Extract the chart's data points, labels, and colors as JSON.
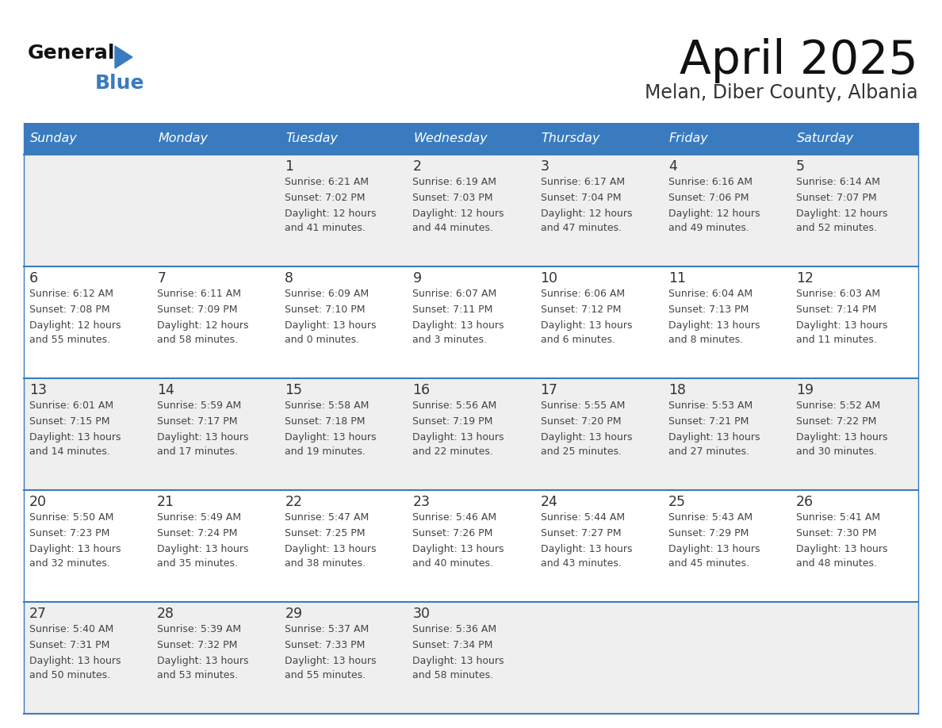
{
  "title": "April 2025",
  "subtitle": "Melan, Diber County, Albania",
  "days_of_week": [
    "Sunday",
    "Monday",
    "Tuesday",
    "Wednesday",
    "Thursday",
    "Friday",
    "Saturday"
  ],
  "header_bg": "#3a7bbf",
  "header_text": "#ffffff",
  "row_bg_odd": "#efefef",
  "row_bg_even": "#ffffff",
  "cell_border": "#3a7bbf",
  "day_number_color": "#333333",
  "cell_text_color": "#444444",
  "weeks": [
    [
      {
        "day": "",
        "sunrise": "",
        "sunset": "",
        "daylight": ""
      },
      {
        "day": "",
        "sunrise": "",
        "sunset": "",
        "daylight": ""
      },
      {
        "day": "1",
        "sunrise": "Sunrise: 6:21 AM",
        "sunset": "Sunset: 7:02 PM",
        "daylight": "Daylight: 12 hours\nand 41 minutes."
      },
      {
        "day": "2",
        "sunrise": "Sunrise: 6:19 AM",
        "sunset": "Sunset: 7:03 PM",
        "daylight": "Daylight: 12 hours\nand 44 minutes."
      },
      {
        "day": "3",
        "sunrise": "Sunrise: 6:17 AM",
        "sunset": "Sunset: 7:04 PM",
        "daylight": "Daylight: 12 hours\nand 47 minutes."
      },
      {
        "day": "4",
        "sunrise": "Sunrise: 6:16 AM",
        "sunset": "Sunset: 7:06 PM",
        "daylight": "Daylight: 12 hours\nand 49 minutes."
      },
      {
        "day": "5",
        "sunrise": "Sunrise: 6:14 AM",
        "sunset": "Sunset: 7:07 PM",
        "daylight": "Daylight: 12 hours\nand 52 minutes."
      }
    ],
    [
      {
        "day": "6",
        "sunrise": "Sunrise: 6:12 AM",
        "sunset": "Sunset: 7:08 PM",
        "daylight": "Daylight: 12 hours\nand 55 minutes."
      },
      {
        "day": "7",
        "sunrise": "Sunrise: 6:11 AM",
        "sunset": "Sunset: 7:09 PM",
        "daylight": "Daylight: 12 hours\nand 58 minutes."
      },
      {
        "day": "8",
        "sunrise": "Sunrise: 6:09 AM",
        "sunset": "Sunset: 7:10 PM",
        "daylight": "Daylight: 13 hours\nand 0 minutes."
      },
      {
        "day": "9",
        "sunrise": "Sunrise: 6:07 AM",
        "sunset": "Sunset: 7:11 PM",
        "daylight": "Daylight: 13 hours\nand 3 minutes."
      },
      {
        "day": "10",
        "sunrise": "Sunrise: 6:06 AM",
        "sunset": "Sunset: 7:12 PM",
        "daylight": "Daylight: 13 hours\nand 6 minutes."
      },
      {
        "day": "11",
        "sunrise": "Sunrise: 6:04 AM",
        "sunset": "Sunset: 7:13 PM",
        "daylight": "Daylight: 13 hours\nand 8 minutes."
      },
      {
        "day": "12",
        "sunrise": "Sunrise: 6:03 AM",
        "sunset": "Sunset: 7:14 PM",
        "daylight": "Daylight: 13 hours\nand 11 minutes."
      }
    ],
    [
      {
        "day": "13",
        "sunrise": "Sunrise: 6:01 AM",
        "sunset": "Sunset: 7:15 PM",
        "daylight": "Daylight: 13 hours\nand 14 minutes."
      },
      {
        "day": "14",
        "sunrise": "Sunrise: 5:59 AM",
        "sunset": "Sunset: 7:17 PM",
        "daylight": "Daylight: 13 hours\nand 17 minutes."
      },
      {
        "day": "15",
        "sunrise": "Sunrise: 5:58 AM",
        "sunset": "Sunset: 7:18 PM",
        "daylight": "Daylight: 13 hours\nand 19 minutes."
      },
      {
        "day": "16",
        "sunrise": "Sunrise: 5:56 AM",
        "sunset": "Sunset: 7:19 PM",
        "daylight": "Daylight: 13 hours\nand 22 minutes."
      },
      {
        "day": "17",
        "sunrise": "Sunrise: 5:55 AM",
        "sunset": "Sunset: 7:20 PM",
        "daylight": "Daylight: 13 hours\nand 25 minutes."
      },
      {
        "day": "18",
        "sunrise": "Sunrise: 5:53 AM",
        "sunset": "Sunset: 7:21 PM",
        "daylight": "Daylight: 13 hours\nand 27 minutes."
      },
      {
        "day": "19",
        "sunrise": "Sunrise: 5:52 AM",
        "sunset": "Sunset: 7:22 PM",
        "daylight": "Daylight: 13 hours\nand 30 minutes."
      }
    ],
    [
      {
        "day": "20",
        "sunrise": "Sunrise: 5:50 AM",
        "sunset": "Sunset: 7:23 PM",
        "daylight": "Daylight: 13 hours\nand 32 minutes."
      },
      {
        "day": "21",
        "sunrise": "Sunrise: 5:49 AM",
        "sunset": "Sunset: 7:24 PM",
        "daylight": "Daylight: 13 hours\nand 35 minutes."
      },
      {
        "day": "22",
        "sunrise": "Sunrise: 5:47 AM",
        "sunset": "Sunset: 7:25 PM",
        "daylight": "Daylight: 13 hours\nand 38 minutes."
      },
      {
        "day": "23",
        "sunrise": "Sunrise: 5:46 AM",
        "sunset": "Sunset: 7:26 PM",
        "daylight": "Daylight: 13 hours\nand 40 minutes."
      },
      {
        "day": "24",
        "sunrise": "Sunrise: 5:44 AM",
        "sunset": "Sunset: 7:27 PM",
        "daylight": "Daylight: 13 hours\nand 43 minutes."
      },
      {
        "day": "25",
        "sunrise": "Sunrise: 5:43 AM",
        "sunset": "Sunset: 7:29 PM",
        "daylight": "Daylight: 13 hours\nand 45 minutes."
      },
      {
        "day": "26",
        "sunrise": "Sunrise: 5:41 AM",
        "sunset": "Sunset: 7:30 PM",
        "daylight": "Daylight: 13 hours\nand 48 minutes."
      }
    ],
    [
      {
        "day": "27",
        "sunrise": "Sunrise: 5:40 AM",
        "sunset": "Sunset: 7:31 PM",
        "daylight": "Daylight: 13 hours\nand 50 minutes."
      },
      {
        "day": "28",
        "sunrise": "Sunrise: 5:39 AM",
        "sunset": "Sunset: 7:32 PM",
        "daylight": "Daylight: 13 hours\nand 53 minutes."
      },
      {
        "day": "29",
        "sunrise": "Sunrise: 5:37 AM",
        "sunset": "Sunset: 7:33 PM",
        "daylight": "Daylight: 13 hours\nand 55 minutes."
      },
      {
        "day": "30",
        "sunrise": "Sunrise: 5:36 AM",
        "sunset": "Sunset: 7:34 PM",
        "daylight": "Daylight: 13 hours\nand 58 minutes."
      },
      {
        "day": "",
        "sunrise": "",
        "sunset": "",
        "daylight": ""
      },
      {
        "day": "",
        "sunrise": "",
        "sunset": "",
        "daylight": ""
      },
      {
        "day": "",
        "sunrise": "",
        "sunset": "",
        "daylight": ""
      }
    ]
  ]
}
